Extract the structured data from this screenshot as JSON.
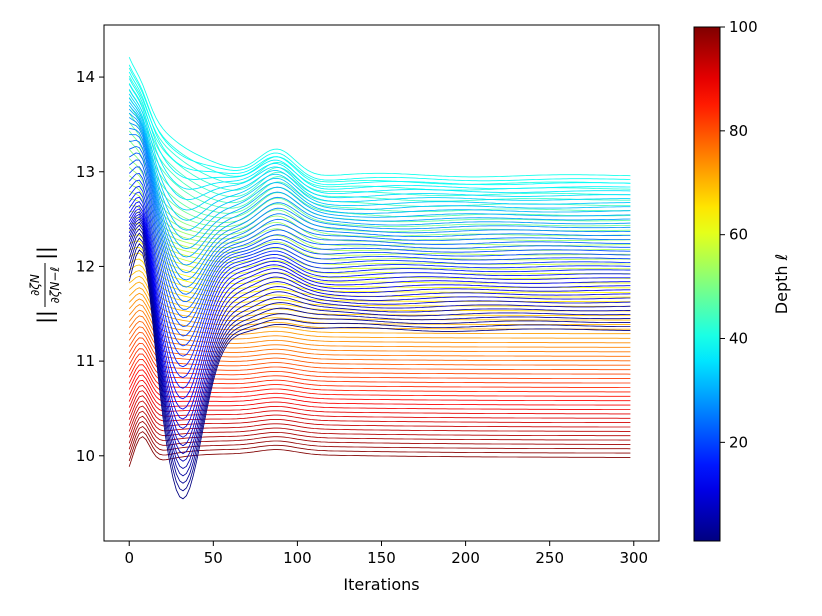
{
  "chart_data": {
    "type": "line",
    "title": "",
    "xlabel": "Iterations",
    "ylabel_fraction": {
      "numerator": "∂ζN",
      "denominator": "∂ζN−ℓ",
      "wrapper": "||  ||"
    },
    "xlim": [
      -15,
      315
    ],
    "ylim": [
      9.1,
      14.55
    ],
    "x_ticks": [
      "0",
      "50",
      "100",
      "150",
      "200",
      "250",
      "300"
    ],
    "y_ticks": [
      "10",
      "11",
      "12",
      "13",
      "14"
    ],
    "colorbar": {
      "label": "Depth ℓ",
      "range": [
        1,
        100
      ],
      "colormap": "jet",
      "ticks": [
        "20",
        "40",
        "60",
        "80",
        "100"
      ]
    },
    "grid": false,
    "num_series": 100,
    "series_encoding": "each line is one depth ℓ (1–100); color encodes ℓ via jet colormap",
    "sample_series": [
      {
        "name": "ℓ=1",
        "x": [
          0,
          10,
          20,
          30,
          40,
          60,
          80,
          100,
          150,
          200,
          250,
          298
        ],
        "y": [
          11.5,
          11.2,
          10.3,
          9.35,
          9.7,
          10.4,
          10.9,
          11.0,
          11.3,
          11.35,
          11.33,
          11.33
        ]
      },
      {
        "name": "ℓ=25",
        "x": [
          0,
          10,
          20,
          30,
          40,
          60,
          80,
          100,
          150,
          200,
          250,
          298
        ],
        "y": [
          12.0,
          11.7,
          11.6,
          11.7,
          11.9,
          11.8,
          12.0,
          11.8,
          12.0,
          11.95,
          11.95,
          11.95
        ]
      },
      {
        "name": "ℓ=40",
        "x": [
          0,
          5,
          10,
          20,
          35,
          50,
          70,
          87,
          100,
          120,
          160,
          200,
          250,
          298
        ],
        "y": [
          14.2,
          14.28,
          14.25,
          13.6,
          13.1,
          13.1,
          13.15,
          13.35,
          13.2,
          13.05,
          13.18,
          13.12,
          13.0,
          12.95
        ]
      },
      {
        "name": "ℓ=70",
        "x": [
          0,
          20,
          50,
          100,
          150,
          200,
          250,
          298
        ],
        "y": [
          12.0,
          11.9,
          11.85,
          11.8,
          11.75,
          11.75,
          11.7,
          11.7
        ]
      },
      {
        "name": "ℓ=100",
        "x": [
          0,
          10,
          50,
          100,
          150,
          200,
          250,
          298
        ],
        "y": [
          9.72,
          9.75,
          9.7,
          9.67,
          9.64,
          9.62,
          9.6,
          9.58
        ]
      }
    ]
  }
}
